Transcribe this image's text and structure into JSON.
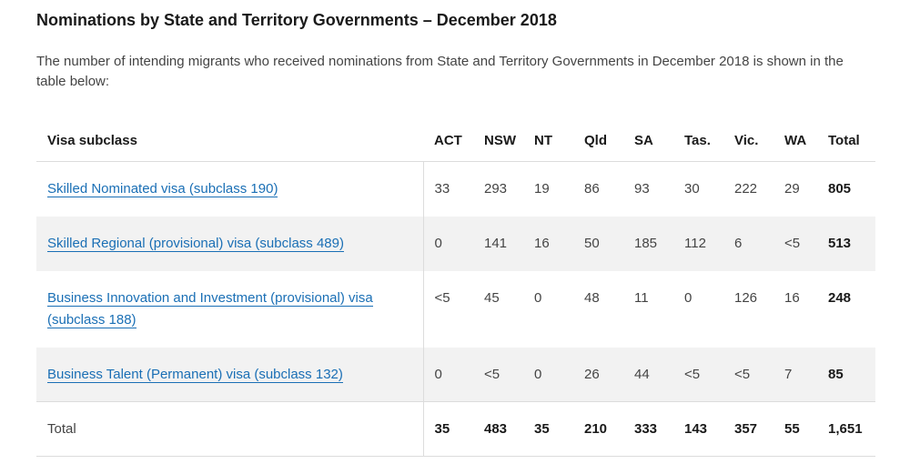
{
  "heading": "Nominations by State and Territory Governments – December 2018",
  "intro": "The number of intending migrants who received nominations from State and Territory Governments in December 2018 is shown in the table below:",
  "table": {
    "headers": [
      "Visa subclass",
      "ACT",
      "NSW",
      "NT",
      "Qld",
      "SA",
      "Tas.",
      "Vic.",
      "WA",
      "Total"
    ],
    "rows": [
      {
        "visa": "Skilled Nominated visa (subclass 190)",
        "values": [
          "33",
          "293",
          "19",
          "86",
          "93",
          "30",
          "222",
          "29"
        ],
        "total": "805"
      },
      {
        "visa": "Skilled Regional (provisional) visa (subclass 489)",
        "values": [
          "0",
          "141",
          "16",
          "50",
          "185",
          "112",
          "6",
          "<5"
        ],
        "total": "513"
      },
      {
        "visa": "Business Innovation and Investment (provisional) visa (subclass 188)",
        "values": [
          "<5",
          "45",
          "0",
          "48",
          "11",
          "0",
          "126",
          "16"
        ],
        "total": "248"
      },
      {
        "visa": "Business Talent (Permanent) visa (subclass 132)",
        "values": [
          "0",
          "<5",
          "0",
          "26",
          "44",
          "<5",
          "<5",
          "7"
        ],
        "total": "85"
      }
    ],
    "total_row": {
      "label": "Total",
      "values": [
        "35",
        "483",
        "35",
        "210",
        "333",
        "143",
        "357",
        "55"
      ],
      "total": "1,651"
    }
  }
}
